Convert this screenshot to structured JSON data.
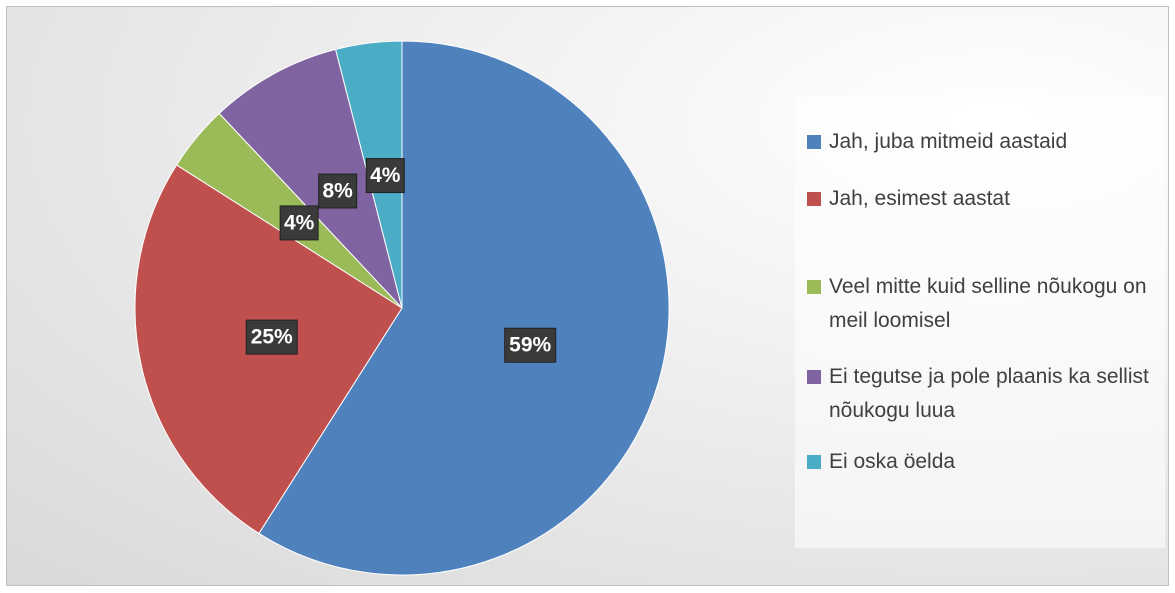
{
  "chart_data": {
    "type": "pie",
    "categories": [
      "Jah, juba mitmeid aastaid",
      "Jah, esimest aastat",
      "Veel mitte kuid selline nõukogu on meil loomisel",
      "Ei tegutse ja pole plaanis ka sellist nõukogu luua",
      "Ei oska öelda"
    ],
    "values": [
      59,
      25,
      4,
      8,
      4
    ],
    "value_labels": [
      "59%",
      "25%",
      "4%",
      "8%",
      "4%"
    ],
    "colors": [
      "#4f81bd",
      "#c0504d",
      "#9bbb59",
      "#8064a2",
      "#4bacc6"
    ],
    "legend": "right"
  }
}
